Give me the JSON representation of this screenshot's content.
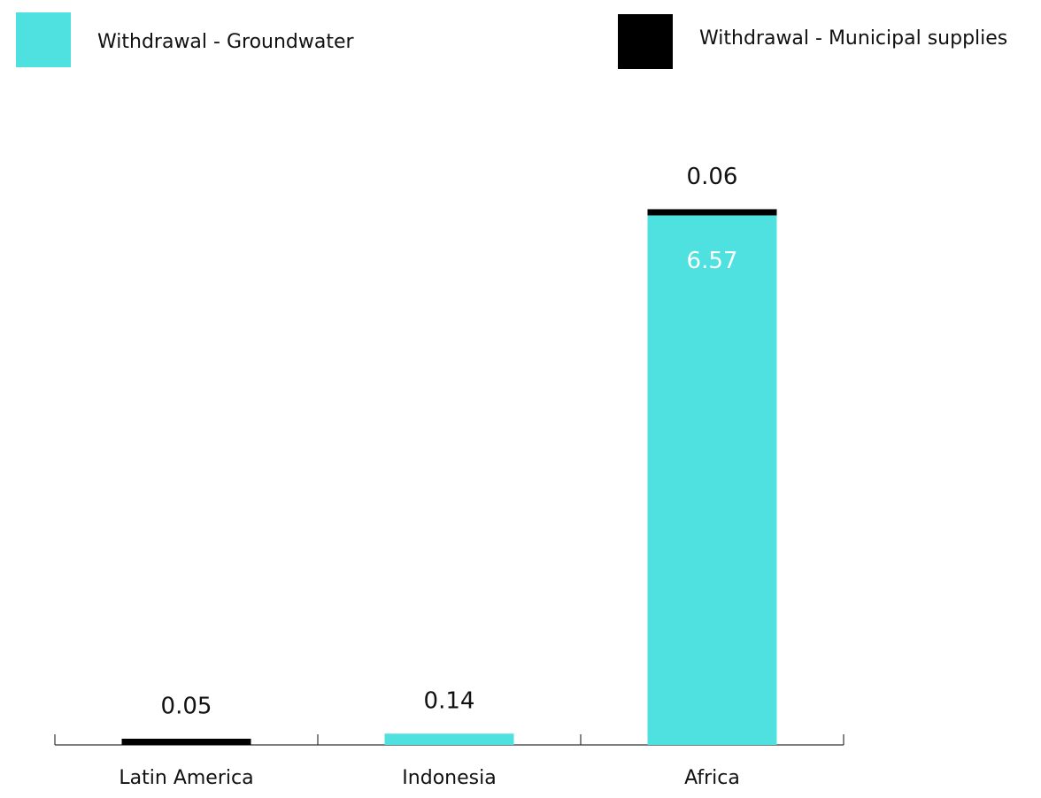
{
  "chart_data": {
    "type": "stacked_bar",
    "categories": [
      "Latin America",
      "Indonesia",
      "Africa"
    ],
    "series": [
      {
        "name": "Withdrawal - Groundwater",
        "color": "#4fe0e0",
        "values": [
          null,
          0.14,
          6.57
        ]
      },
      {
        "name": "Withdrawal - Municipal supplies",
        "color": "#000000",
        "values": [
          0.05,
          null,
          0.06
        ]
      }
    ]
  }
}
